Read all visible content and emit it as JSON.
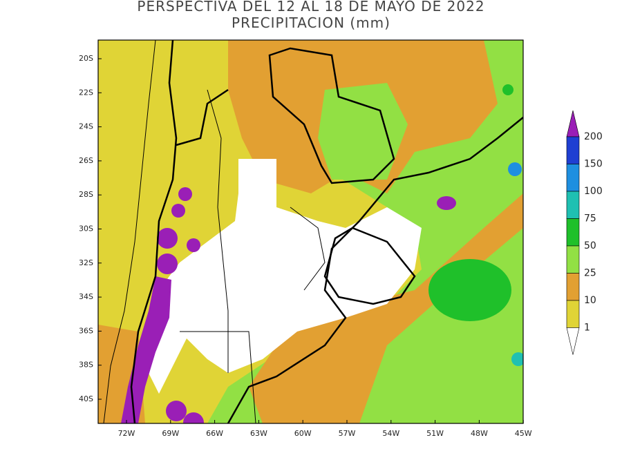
{
  "title": {
    "line1": "PERSPECTIVA DEL 12 AL 18 DE MAYO DE 2022",
    "line2": "PRECIPITACION (mm)"
  },
  "map": {
    "lat_labels": [
      "20S",
      "22S",
      "24S",
      "26S",
      "28S",
      "30S",
      "32S",
      "34S",
      "36S",
      "38S",
      "40S"
    ],
    "lon_labels": [
      "72W",
      "69W",
      "66W",
      "63W",
      "60W",
      "57W",
      "54W",
      "51W",
      "48W",
      "45W"
    ]
  },
  "colorbar": {
    "levels": [
      200,
      150,
      100,
      75,
      50,
      25,
      10,
      1
    ],
    "colors": [
      "#9a1fb6",
      "#1f3fd2",
      "#1e8fe0",
      "#1fc0b2",
      "#1fc02a",
      "#92e044",
      "#e2a032",
      "#e0d436",
      "#ffffff"
    ]
  }
}
